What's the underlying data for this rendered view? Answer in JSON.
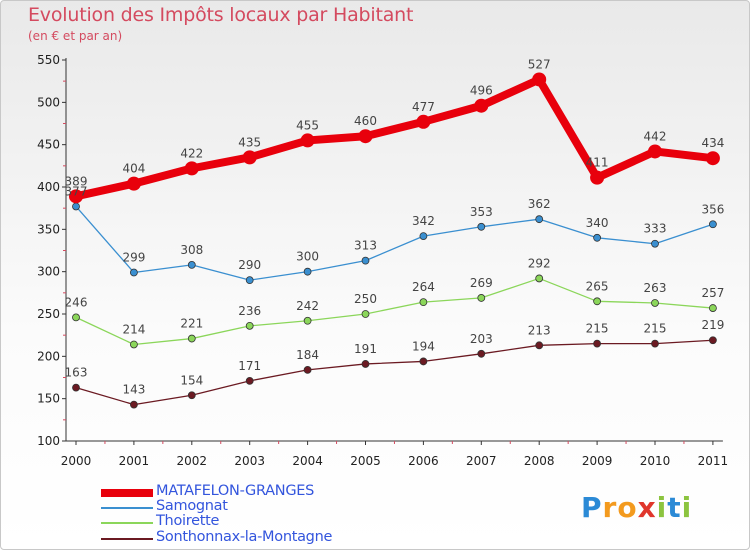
{
  "title": "Evolution des Impôts locaux par Habitant",
  "subtitle": "(en € et par an)",
  "logo": {
    "text": "Proxiti",
    "letters": [
      "P",
      "r",
      "o",
      "x",
      "i",
      "t",
      "i"
    ],
    "colors": [
      "#2b8ad6",
      "#f39a1e",
      "#f39a1e",
      "#e0362c",
      "#8cc43f",
      "#2b8ad6",
      "#8cc43f"
    ]
  },
  "chart_data": {
    "type": "line",
    "title": "Evolution des Impôts locaux par Habitant",
    "subtitle": "(en € et par an)",
    "xlabel": "",
    "ylabel": "",
    "categories": [
      "2000",
      "2001",
      "2002",
      "2003",
      "2004",
      "2005",
      "2006",
      "2007",
      "2008",
      "2009",
      "2010",
      "2011"
    ],
    "ylim": [
      100,
      550
    ],
    "yticks": [
      "100",
      "150",
      "200",
      "250",
      "300",
      "350",
      "400",
      "450",
      "500",
      "550"
    ],
    "grid": false,
    "legend_position": "bottom-left",
    "series": [
      {
        "name": "MATAFELON-GRANGES",
        "color": "#e8000c",
        "values": [
          389,
          404,
          422,
          435,
          455,
          460,
          477,
          496,
          527,
          411,
          442,
          434
        ],
        "labels": [
          "389",
          "404",
          "422",
          "435",
          "455",
          "460",
          "477",
          "496",
          "527",
          "411",
          "442",
          "434"
        ]
      },
      {
        "name": "Samognat",
        "color": "#3a8fd0",
        "values": [
          377,
          299,
          308,
          290,
          300,
          313,
          342,
          353,
          362,
          340,
          333,
          356
        ],
        "labels": [
          "377",
          "299",
          "308",
          "290",
          "300",
          "313",
          "342",
          "353",
          "362",
          "340",
          "333",
          "356"
        ]
      },
      {
        "name": "Thoirette",
        "color": "#8bd65a",
        "values": [
          246,
          214,
          221,
          236,
          242,
          250,
          264,
          269,
          292,
          265,
          263,
          257
        ],
        "labels": [
          "246",
          "214",
          "221",
          "236",
          "242",
          "250",
          "264",
          "269",
          "292",
          "265",
          "263",
          "257"
        ]
      },
      {
        "name": "Sonthonnax-la-Montagne",
        "color": "#6b1a22",
        "values": [
          163,
          143,
          154,
          171,
          184,
          191,
          194,
          203,
          213,
          215,
          215,
          219
        ],
        "labels": [
          "163",
          "143",
          "154",
          "171",
          "184",
          "191",
          "194",
          "203",
          "213",
          "215",
          "215",
          "219"
        ]
      }
    ]
  }
}
